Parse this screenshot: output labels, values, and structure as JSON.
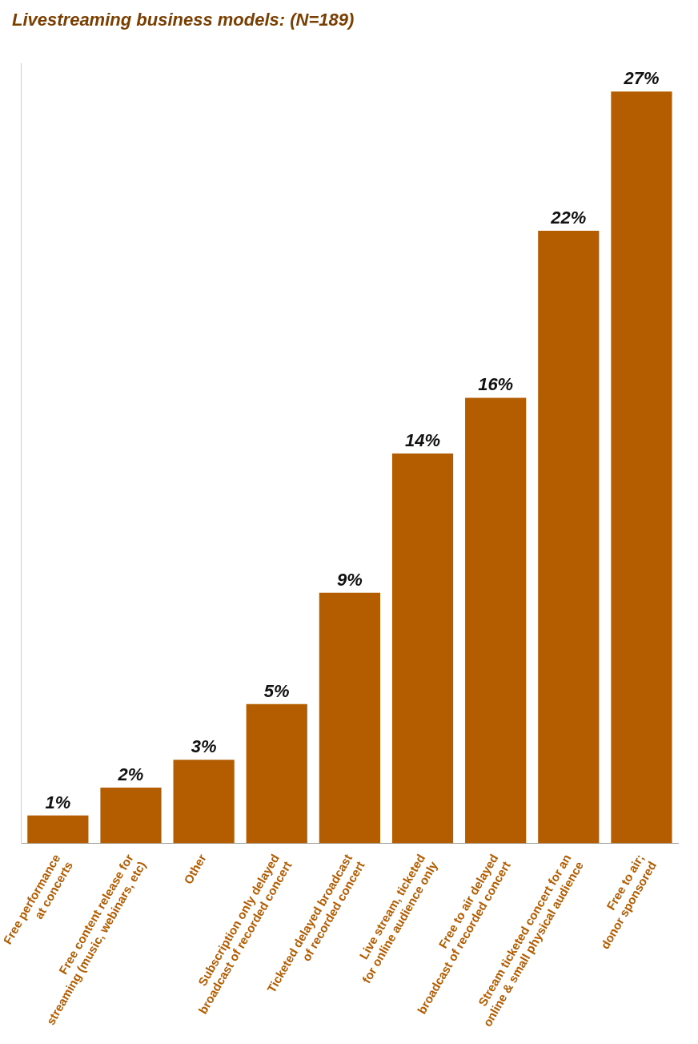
{
  "chart_data": {
    "type": "bar",
    "title": "Livestreaming business models: (N=189)",
    "categories": [
      "Free performance at concerts",
      "Free content release for streaming (music, webinars, etc)",
      "Other",
      "Subscription only delayed broadcast of recorded concert",
      "Ticketed delayed broadcast of recorded concert",
      "Live stream, ticketed for online audience only",
      "Free to air delayed broadcast of recorded concert",
      "Stream ticketed concert for an online & small physical audience",
      "Free to air; donor sponsored"
    ],
    "values": [
      1,
      2,
      3,
      5,
      9,
      14,
      16,
      22,
      27
    ],
    "value_labels": [
      "1%",
      "2%",
      "3%",
      "5%",
      "9%",
      "14%",
      "16%",
      "22%",
      "27%"
    ],
    "color": "#b35c00",
    "ylim": [
      0,
      28
    ],
    "grid": false,
    "data_labels": true,
    "tick_labels": "x"
  }
}
